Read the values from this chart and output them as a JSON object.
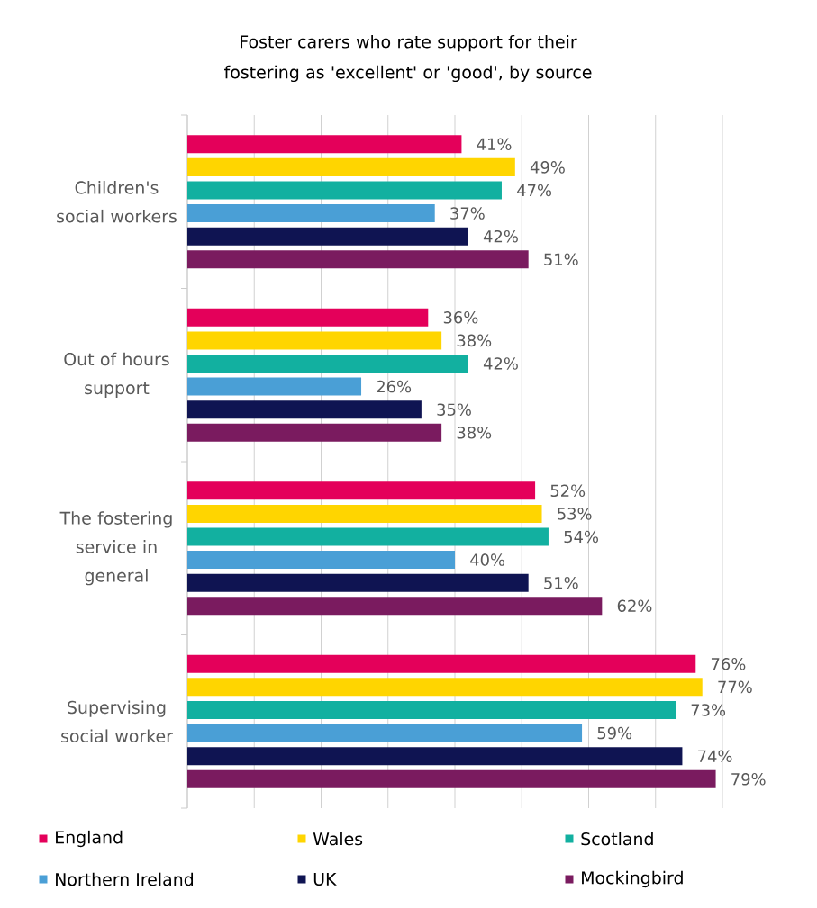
{
  "chart_data": {
    "type": "bar",
    "orientation": "horizontal",
    "title": "Foster carers who rate support for their fostering as 'excellent' or 'good', by source",
    "categories": [
      "Children's social workers",
      "Out of hours support",
      "The fostering service in general",
      "Supervising social worker"
    ],
    "series": [
      {
        "name": "England",
        "color": "#e4005a",
        "values": [
          41,
          36,
          52,
          76
        ],
        "value_labels": [
          "41%",
          "36%",
          "52%",
          "76%"
        ]
      },
      {
        "name": "Wales",
        "color": "#ffd500",
        "values": [
          49,
          38,
          53,
          77
        ],
        "value_labels": [
          "49%",
          "38%",
          "53%",
          "77%"
        ]
      },
      {
        "name": "Scotland",
        "color": "#12b0a0",
        "values": [
          47,
          42,
          54,
          73
        ],
        "value_labels": [
          "47%",
          "42%",
          "54%",
          "73%"
        ]
      },
      {
        "name": "Northern Ireland",
        "color": "#4a9fd6",
        "values": [
          37,
          26,
          40,
          59
        ],
        "value_labels": [
          "37%",
          "26%",
          "40%",
          "59%"
        ]
      },
      {
        "name": "UK",
        "color": "#0f1452",
        "values": [
          42,
          35,
          51,
          74
        ],
        "value_labels": [
          "42%",
          "35%",
          "51%",
          "74%"
        ]
      },
      {
        "name": "Mockingbird",
        "color": "#7a1b5f",
        "values": [
          51,
          38,
          62,
          79
        ],
        "value_labels": [
          "51%",
          "38%",
          "62%",
          "79%"
        ]
      }
    ],
    "xlim": [
      0,
      80
    ],
    "xticks": [
      {
        "value": 0,
        "label": null
      },
      {
        "value": 10,
        "label": null
      },
      {
        "value": 20,
        "label": null
      },
      {
        "value": 30,
        "label": null
      },
      {
        "value": 40,
        "label": null
      },
      {
        "value": 50,
        "label": null
      },
      {
        "value": 60,
        "label": null
      },
      {
        "value": 70,
        "label": null
      },
      {
        "value": 80,
        "label": null
      }
    ],
    "grid": "x",
    "legend": "bottom",
    "tick_labels": "y"
  }
}
